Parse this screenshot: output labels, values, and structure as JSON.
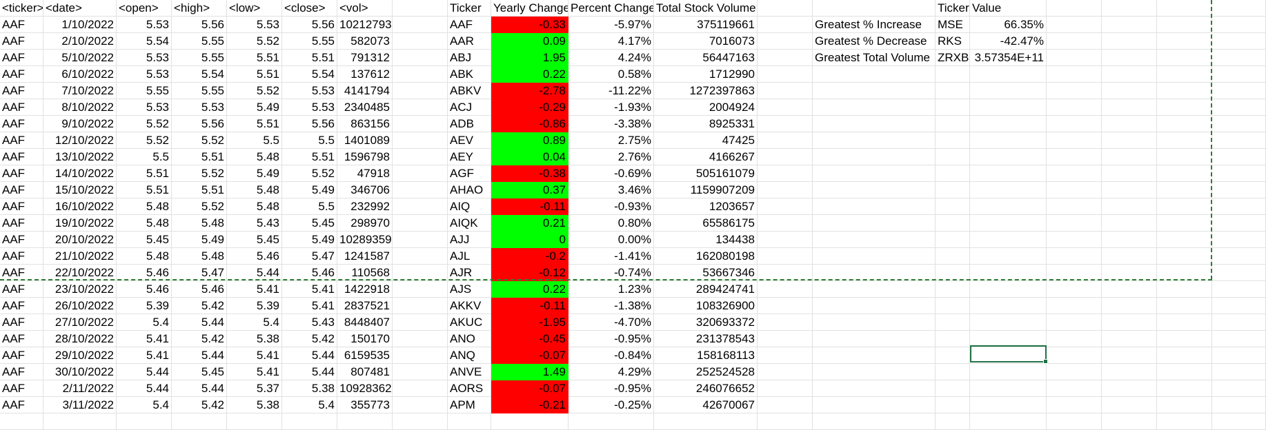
{
  "colors": {
    "negative_fill": "#ff0000",
    "positive_fill": "#00ff00",
    "page_break": "#2e7d32",
    "selection": "#217346"
  },
  "raw_headers": [
    "<ticker>",
    "<date>",
    "<open>",
    "<high>",
    "<low>",
    "<close>",
    "<vol>"
  ],
  "raw_rows": [
    [
      "AAF",
      "1/10/2022",
      "5.53",
      "5.56",
      "5.53",
      "5.56",
      "10212793"
    ],
    [
      "AAF",
      "2/10/2022",
      "5.54",
      "5.55",
      "5.52",
      "5.55",
      "582073"
    ],
    [
      "AAF",
      "5/10/2022",
      "5.53",
      "5.55",
      "5.51",
      "5.51",
      "791312"
    ],
    [
      "AAF",
      "6/10/2022",
      "5.53",
      "5.54",
      "5.51",
      "5.54",
      "137612"
    ],
    [
      "AAF",
      "7/10/2022",
      "5.55",
      "5.55",
      "5.52",
      "5.53",
      "4141794"
    ],
    [
      "AAF",
      "8/10/2022",
      "5.53",
      "5.53",
      "5.49",
      "5.53",
      "2340485"
    ],
    [
      "AAF",
      "9/10/2022",
      "5.52",
      "5.56",
      "5.51",
      "5.56",
      "863156"
    ],
    [
      "AAF",
      "12/10/2022",
      "5.52",
      "5.52",
      "5.5",
      "5.5",
      "1401089"
    ],
    [
      "AAF",
      "13/10/2022",
      "5.5",
      "5.51",
      "5.48",
      "5.51",
      "1596798"
    ],
    [
      "AAF",
      "14/10/2022",
      "5.51",
      "5.52",
      "5.49",
      "5.52",
      "47918"
    ],
    [
      "AAF",
      "15/10/2022",
      "5.51",
      "5.51",
      "5.48",
      "5.49",
      "346706"
    ],
    [
      "AAF",
      "16/10/2022",
      "5.48",
      "5.52",
      "5.48",
      "5.5",
      "232992"
    ],
    [
      "AAF",
      "19/10/2022",
      "5.48",
      "5.48",
      "5.43",
      "5.45",
      "298970"
    ],
    [
      "AAF",
      "20/10/2022",
      "5.45",
      "5.49",
      "5.45",
      "5.49",
      "10289359"
    ],
    [
      "AAF",
      "21/10/2022",
      "5.48",
      "5.48",
      "5.46",
      "5.47",
      "1241587"
    ],
    [
      "AAF",
      "22/10/2022",
      "5.46",
      "5.47",
      "5.44",
      "5.46",
      "110568"
    ],
    [
      "AAF",
      "23/10/2022",
      "5.46",
      "5.46",
      "5.41",
      "5.41",
      "1422918"
    ],
    [
      "AAF",
      "26/10/2022",
      "5.39",
      "5.42",
      "5.39",
      "5.41",
      "2837521"
    ],
    [
      "AAF",
      "27/10/2022",
      "5.4",
      "5.44",
      "5.4",
      "5.43",
      "8448407"
    ],
    [
      "AAF",
      "28/10/2022",
      "5.41",
      "5.42",
      "5.38",
      "5.42",
      "150170"
    ],
    [
      "AAF",
      "29/10/2022",
      "5.41",
      "5.44",
      "5.41",
      "5.44",
      "6159535"
    ],
    [
      "AAF",
      "30/10/2022",
      "5.44",
      "5.45",
      "5.41",
      "5.44",
      "807481"
    ],
    [
      "AAF",
      "2/11/2022",
      "5.44",
      "5.44",
      "5.37",
      "5.38",
      "10928362"
    ],
    [
      "AAF",
      "3/11/2022",
      "5.4",
      "5.42",
      "5.38",
      "5.4",
      "355773"
    ]
  ],
  "summary_headers": [
    "Ticker",
    "Yearly Change",
    "Percent Change",
    "Total Stock Volume"
  ],
  "summary_rows": [
    [
      "AAF",
      "-0.33",
      "-5.97%",
      "375119661"
    ],
    [
      "AAR",
      "0.09",
      "4.17%",
      "7016073"
    ],
    [
      "ABJ",
      "1.95",
      "4.24%",
      "56447163"
    ],
    [
      "ABK",
      "0.22",
      "0.58%",
      "1712990"
    ],
    [
      "ABKV",
      "-2.78",
      "-11.22%",
      "1272397863"
    ],
    [
      "ACJ",
      "-0.29",
      "-1.93%",
      "2004924"
    ],
    [
      "ADB",
      "-0.86",
      "-3.38%",
      "8925331"
    ],
    [
      "AEV",
      "0.89",
      "2.75%",
      "47425"
    ],
    [
      "AEY",
      "0.04",
      "2.76%",
      "4166267"
    ],
    [
      "AGF",
      "-0.38",
      "-0.69%",
      "505161079"
    ],
    [
      "AHAO",
      "0.37",
      "3.46%",
      "1159907209"
    ],
    [
      "AIQ",
      "-0.11",
      "-0.93%",
      "1203657"
    ],
    [
      "AIQK",
      "0.21",
      "0.80%",
      "65586175"
    ],
    [
      "AJJ",
      "0",
      "0.00%",
      "134438"
    ],
    [
      "AJL",
      "-0.2",
      "-1.41%",
      "162080198"
    ],
    [
      "AJR",
      "-0.12",
      "-0.74%",
      "53667346"
    ],
    [
      "AJS",
      "0.22",
      "1.23%",
      "289424741"
    ],
    [
      "AKKV",
      "-0.11",
      "-1.38%",
      "108326900"
    ],
    [
      "AKUC",
      "-1.95",
      "-4.70%",
      "320693372"
    ],
    [
      "ANO",
      "-0.45",
      "-0.95%",
      "231378543"
    ],
    [
      "ANQ",
      "-0.07",
      "-0.84%",
      "158168113"
    ],
    [
      "ANVE",
      "1.49",
      "4.29%",
      "252524528"
    ],
    [
      "AORS",
      "-0.07",
      "-0.95%",
      "246076652"
    ],
    [
      "APM",
      "-0.21",
      "-0.25%",
      "42670067"
    ]
  ],
  "greatest_headers": [
    "Ticker",
    "Value"
  ],
  "greatest_rows": [
    [
      "Greatest % Increase",
      "MSE",
      "66.35%"
    ],
    [
      "Greatest % Decrease",
      "RKS",
      "-42.47%"
    ],
    [
      "Greatest Total Volume",
      "ZRXB",
      "3.57354E+11"
    ]
  ]
}
